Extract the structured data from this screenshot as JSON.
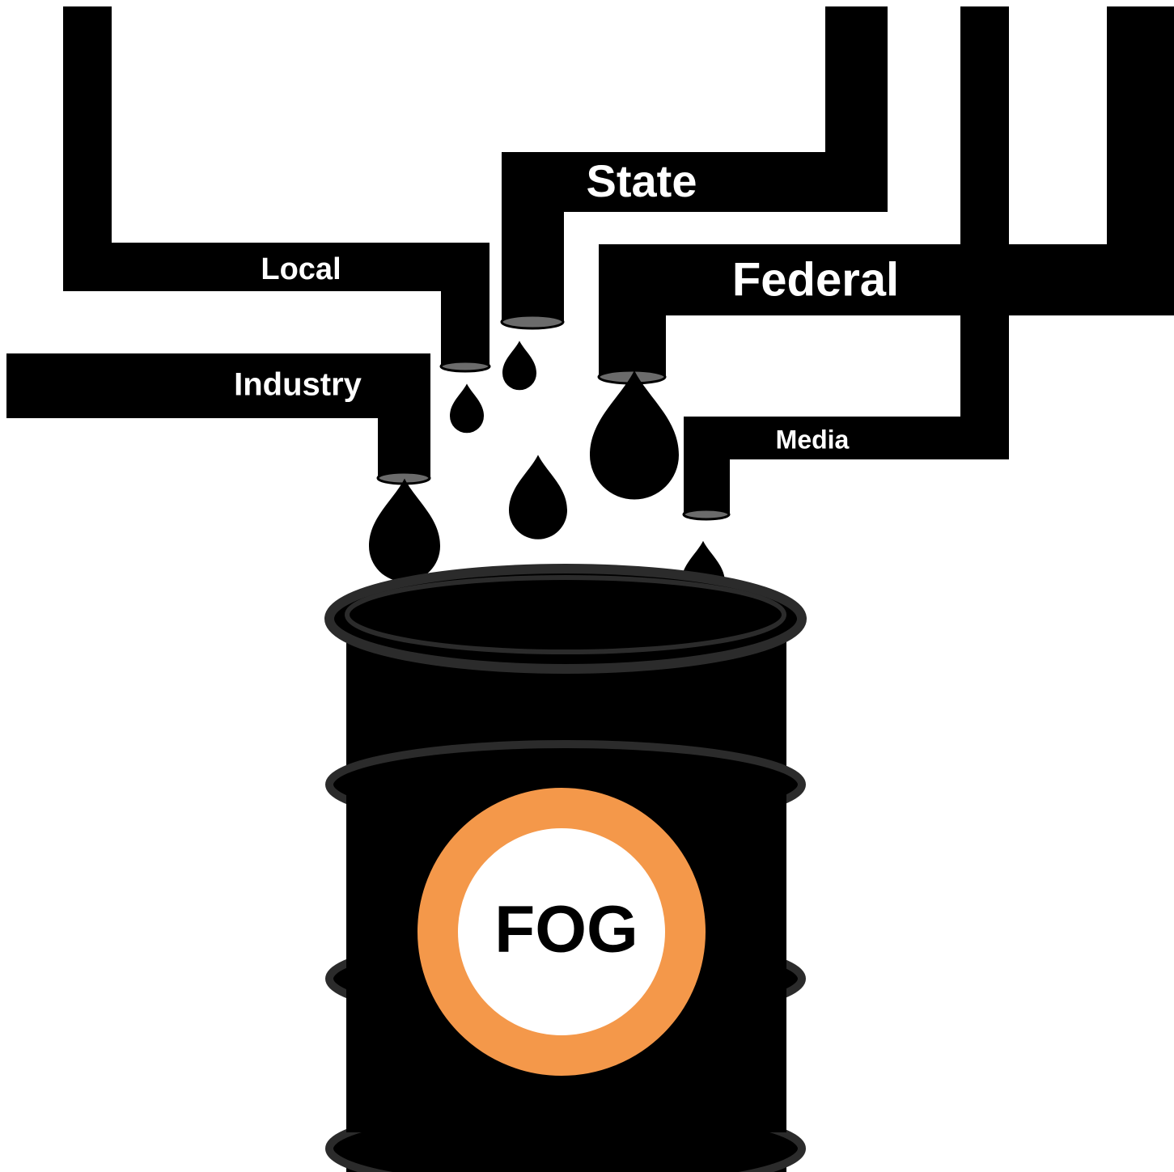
{
  "pipes": [
    "Local",
    "State",
    "Federal",
    "Industry",
    "Media"
  ],
  "barrel": {
    "label": "FOG"
  }
}
